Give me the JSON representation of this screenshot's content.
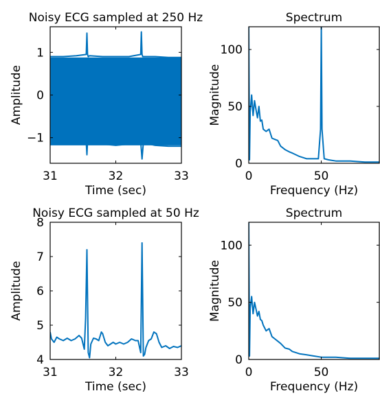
{
  "colors": {
    "series": "#0072bd",
    "axes": "#000000",
    "background": "#ffffff"
  },
  "chart_data": [
    {
      "type": "line",
      "title": "Noisy ECG sampled at 250 Hz",
      "xlabel": "Time (sec)",
      "ylabel": "Amplitude",
      "xlim": [
        31,
        33
      ],
      "ylim": [
        -1.6,
        1.6
      ],
      "xticks": [
        31,
        32,
        33
      ],
      "xtick_labels": [
        "31",
        "32",
        "33"
      ],
      "yticks": [
        -1,
        0,
        1
      ],
      "ytick_labels": [
        "−1",
        "0",
        "1"
      ],
      "band": {
        "x": [
          31.0,
          33.0
        ],
        "upper": 0.88,
        "lower": -1.18
      },
      "series": [
        {
          "x": [
            31.0,
            31.2,
            31.4,
            31.55,
            31.56,
            31.57,
            31.58,
            31.6,
            31.8,
            32.0,
            32.2,
            32.38,
            32.39,
            32.4,
            32.41,
            32.6,
            32.8,
            33.0
          ],
          "y": [
            0.9,
            0.9,
            0.92,
            0.95,
            1.45,
            0.95,
            0.9,
            0.92,
            0.9,
            0.9,
            0.9,
            0.95,
            1.48,
            0.95,
            0.9,
            0.9,
            0.88,
            0.88
          ]
        },
        {
          "x": [
            31.0,
            31.2,
            31.4,
            31.55,
            31.56,
            31.57,
            31.6,
            31.8,
            32.0,
            32.2,
            32.38,
            32.4,
            32.42,
            32.6,
            32.8,
            33.0
          ],
          "y": [
            -1.1,
            -1.12,
            -1.1,
            -1.1,
            -1.4,
            -1.08,
            -1.12,
            -1.15,
            -1.18,
            -1.15,
            -1.1,
            -1.5,
            -1.12,
            -1.18,
            -1.2,
            -1.2
          ]
        }
      ]
    },
    {
      "type": "line",
      "title": "Spectrum",
      "xlabel": "Frequency (Hz)",
      "ylabel": "Magnitude",
      "xlim": [
        0,
        90
      ],
      "ylim": [
        0,
        120
      ],
      "xticks": [
        0,
        50
      ],
      "xtick_labels": [
        "0",
        "50"
      ],
      "yticks": [
        0,
        50,
        100
      ],
      "ytick_labels": [
        "0",
        "50",
        "100"
      ],
      "series": [
        {
          "x": [
            0,
            0.5,
            1,
            2,
            3,
            4,
            5,
            6,
            7,
            8,
            9,
            10,
            12,
            14,
            16,
            18,
            20,
            22,
            25,
            28,
            30,
            35,
            40,
            45,
            48,
            49.5,
            50,
            50.5,
            52,
            55,
            60,
            70,
            80,
            90
          ],
          "y": [
            120,
            3,
            45,
            60,
            42,
            55,
            47,
            40,
            50,
            37,
            38,
            30,
            28,
            30,
            22,
            21,
            20,
            15,
            12,
            10,
            9,
            6,
            4,
            4,
            4,
            30,
            120,
            30,
            4,
            3,
            2,
            2,
            1,
            1
          ]
        }
      ]
    },
    {
      "type": "line",
      "title": "Noisy ECG sampled at 50 Hz",
      "xlabel": "Time (sec)",
      "ylabel": "Amplitude",
      "xlim": [
        31,
        33
      ],
      "ylim": [
        4,
        8
      ],
      "xticks": [
        31,
        32,
        33
      ],
      "xtick_labels": [
        "31",
        "32",
        "33"
      ],
      "yticks": [
        4,
        5,
        6,
        7,
        8
      ],
      "ytick_labels": [
        "4",
        "5",
        "6",
        "7",
        "8"
      ],
      "series": [
        {
          "x": [
            31.0,
            31.02,
            31.06,
            31.1,
            31.14,
            31.2,
            31.26,
            31.32,
            31.38,
            31.44,
            31.48,
            31.52,
            31.54,
            31.56,
            31.58,
            31.6,
            31.62,
            31.66,
            31.7,
            31.74,
            31.78,
            31.8,
            31.84,
            31.88,
            31.92,
            31.96,
            32.0,
            32.06,
            32.12,
            32.18,
            32.24,
            32.3,
            32.34,
            32.38,
            32.4,
            32.42,
            32.44,
            32.46,
            32.5,
            32.54,
            32.58,
            32.62,
            32.66,
            32.7,
            32.76,
            32.82,
            32.88,
            32.94,
            33.0
          ],
          "y": [
            4.8,
            4.6,
            4.5,
            4.65,
            4.6,
            4.55,
            4.62,
            4.55,
            4.6,
            4.7,
            4.62,
            4.3,
            5.2,
            7.2,
            4.2,
            4.05,
            4.45,
            4.62,
            4.6,
            4.55,
            4.8,
            4.75,
            4.5,
            4.4,
            4.45,
            4.5,
            4.45,
            4.5,
            4.45,
            4.5,
            4.6,
            4.55,
            4.55,
            4.2,
            7.4,
            4.1,
            4.15,
            4.35,
            4.55,
            4.6,
            4.8,
            4.75,
            4.5,
            4.35,
            4.4,
            4.32,
            4.38,
            4.35,
            4.4
          ]
        }
      ]
    },
    {
      "type": "line",
      "title": "Spectrum",
      "xlabel": "Frequency (Hz)",
      "ylabel": "Magnitude",
      "xlim": [
        0,
        90
      ],
      "ylim": [
        0,
        120
      ],
      "xticks": [
        0,
        50
      ],
      "xtick_labels": [
        "0",
        "50"
      ],
      "yticks": [
        0,
        50,
        100
      ],
      "ytick_labels": [
        "0",
        "50",
        "100"
      ],
      "series": [
        {
          "x": [
            0,
            0.5,
            1,
            2,
            3,
            4,
            5,
            6,
            7,
            8,
            9,
            10,
            12,
            14,
            16,
            18,
            20,
            22,
            25,
            28,
            30,
            35,
            40,
            45,
            50,
            55,
            60,
            70,
            80,
            90
          ],
          "y": [
            120,
            3,
            45,
            55,
            40,
            50,
            44,
            38,
            42,
            35,
            34,
            30,
            25,
            27,
            20,
            18,
            16,
            14,
            10,
            9,
            7,
            5,
            4,
            3,
            2,
            2,
            2,
            1,
            1,
            1
          ]
        }
      ]
    }
  ]
}
